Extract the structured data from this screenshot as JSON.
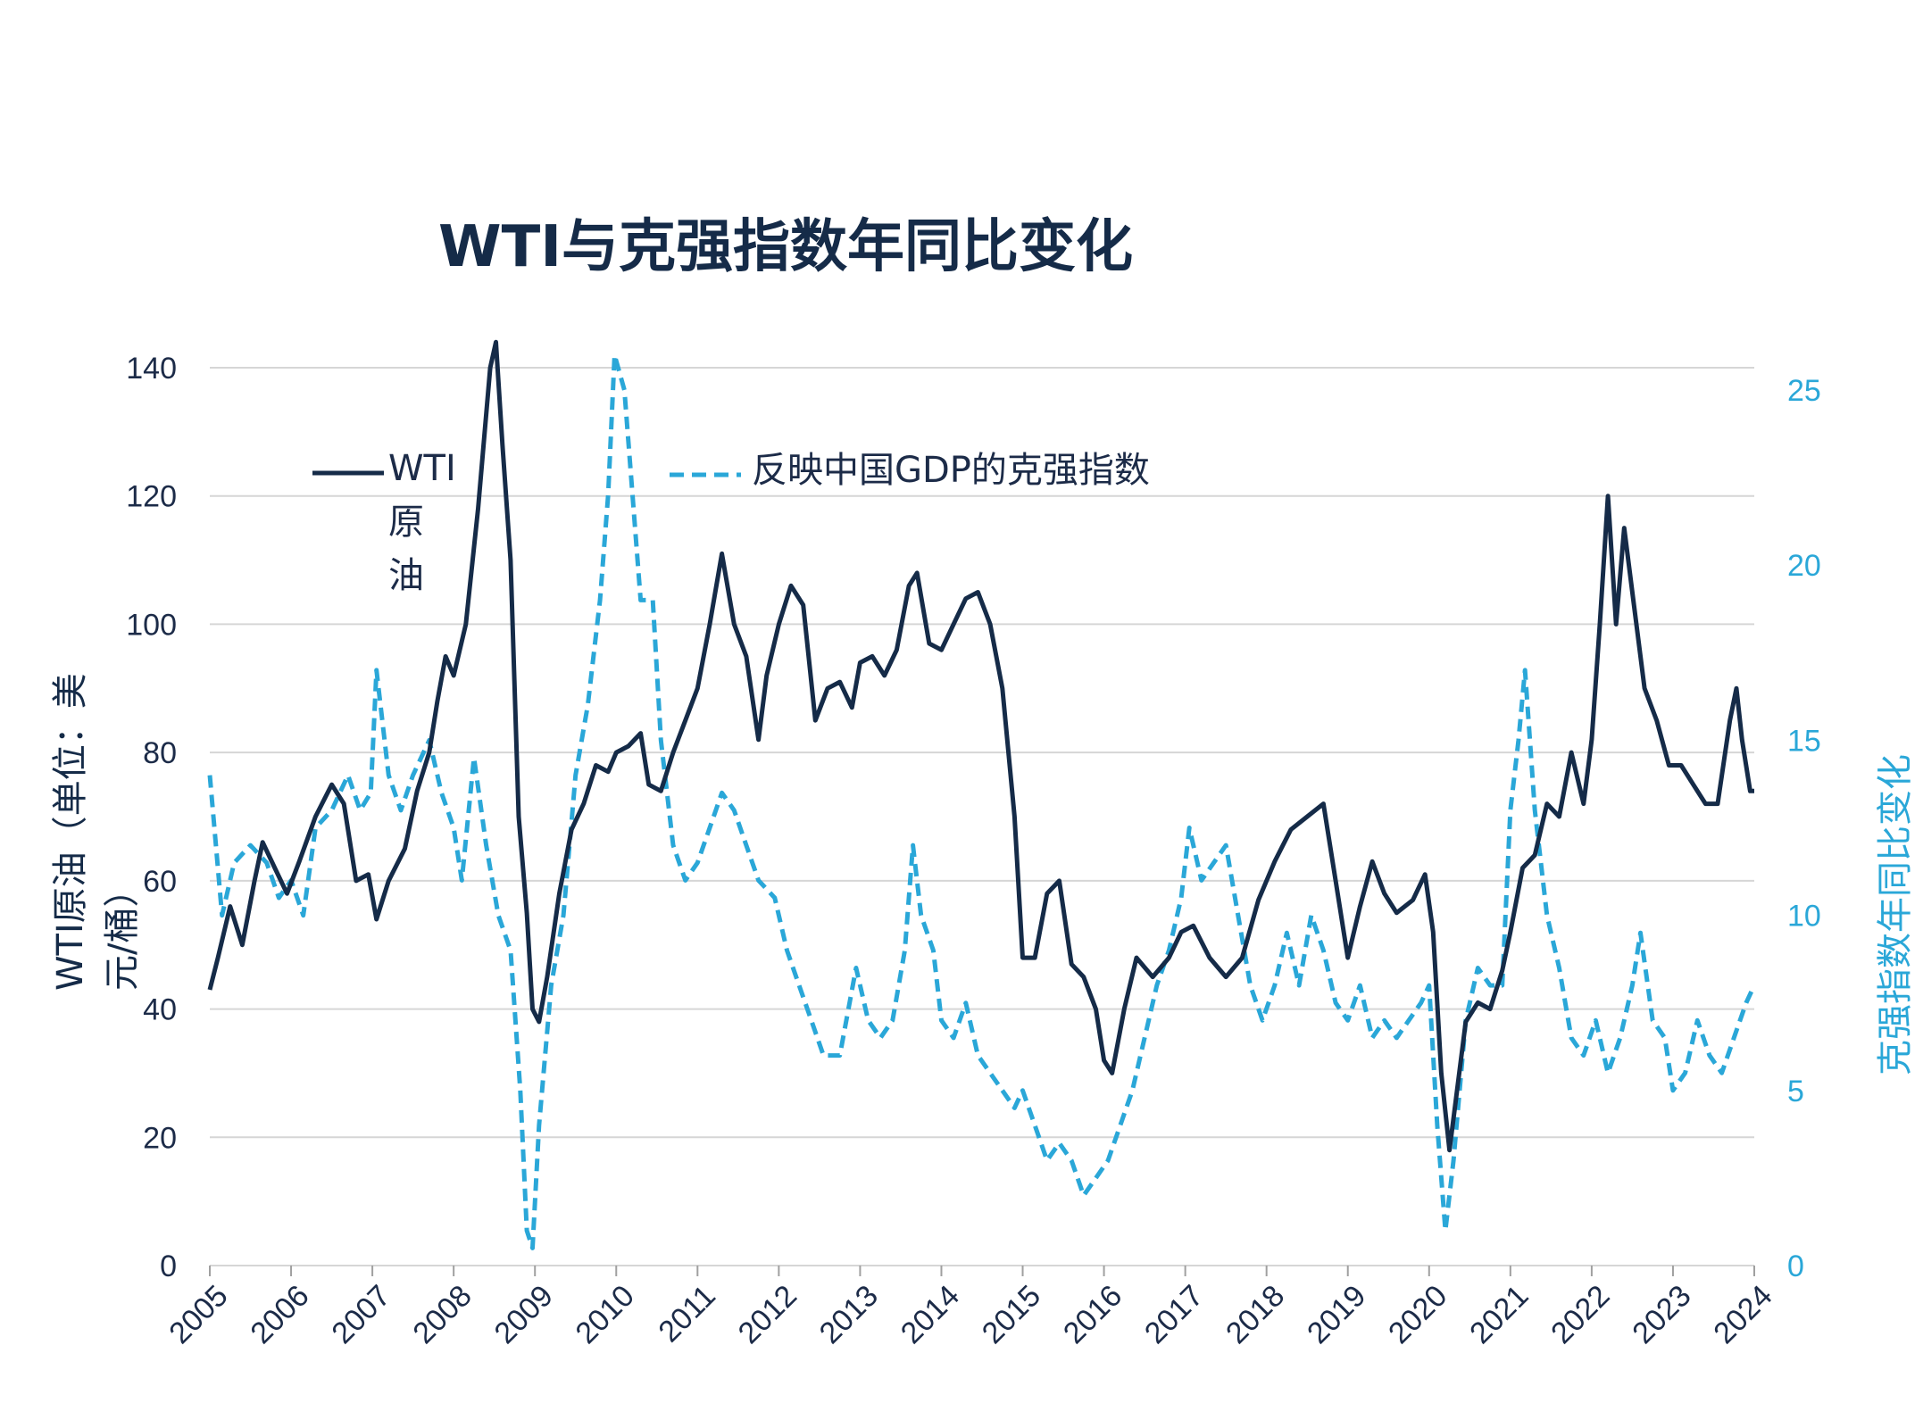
{
  "chart_data": {
    "type": "line",
    "title": "WTI与克强指数年同比变化",
    "ylabel_left_line1": "WTI原油（单位：美",
    "ylabel_left_line2": "元/桶）",
    "ylabel_right": "克强指数年同比变化",
    "xlim": [
      2005,
      2024
    ],
    "ylim_left": [
      0,
      145
    ],
    "ylim_right": [
      0,
      26.5
    ],
    "x_ticks": [
      "2005",
      "2006",
      "2007",
      "2008",
      "2009",
      "2010",
      "2011",
      "2012",
      "2013",
      "2014",
      "2015",
      "2016",
      "2017",
      "2018",
      "2019",
      "2020",
      "2021",
      "2022",
      "2023",
      "2024"
    ],
    "y_ticks_left": [
      "0",
      "20",
      "40",
      "60",
      "80",
      "100",
      "120",
      "140"
    ],
    "y_ticks_right": [
      "0",
      "5",
      "10",
      "15",
      "20",
      "25"
    ],
    "grid": "horizontal",
    "legend": {
      "wti_line1": "WTI",
      "wti_line2": "原",
      "wti_line3": "油",
      "keqiang": "反映中国GDP的克强指数"
    },
    "colors": {
      "wti": "#152b48",
      "keqiang": "#2aa7d8",
      "grid": "#d6d6d6"
    },
    "series": [
      {
        "name": "WTI原油",
        "axis": "left",
        "style": "solid",
        "points": [
          [
            2005.0,
            43
          ],
          [
            2005.1,
            48
          ],
          [
            2005.25,
            56
          ],
          [
            2005.4,
            50
          ],
          [
            2005.55,
            60
          ],
          [
            2005.65,
            66
          ],
          [
            2005.8,
            62
          ],
          [
            2005.95,
            58
          ],
          [
            2006.1,
            63
          ],
          [
            2006.3,
            70
          ],
          [
            2006.5,
            75
          ],
          [
            2006.65,
            72
          ],
          [
            2006.8,
            60
          ],
          [
            2006.95,
            61
          ],
          [
            2007.05,
            54
          ],
          [
            2007.2,
            60
          ],
          [
            2007.4,
            65
          ],
          [
            2007.55,
            74
          ],
          [
            2007.7,
            80
          ],
          [
            2007.8,
            88
          ],
          [
            2007.9,
            95
          ],
          [
            2008.0,
            92
          ],
          [
            2008.15,
            100
          ],
          [
            2008.3,
            118
          ],
          [
            2008.45,
            140
          ],
          [
            2008.52,
            144
          ],
          [
            2008.6,
            128
          ],
          [
            2008.7,
            110
          ],
          [
            2008.8,
            70
          ],
          [
            2008.9,
            55
          ],
          [
            2008.97,
            40
          ],
          [
            2009.05,
            38
          ],
          [
            2009.15,
            45
          ],
          [
            2009.3,
            58
          ],
          [
            2009.45,
            68
          ],
          [
            2009.6,
            72
          ],
          [
            2009.75,
            78
          ],
          [
            2009.9,
            77
          ],
          [
            2010.0,
            80
          ],
          [
            2010.15,
            81
          ],
          [
            2010.3,
            83
          ],
          [
            2010.4,
            75
          ],
          [
            2010.55,
            74
          ],
          [
            2010.7,
            80
          ],
          [
            2010.85,
            85
          ],
          [
            2011.0,
            90
          ],
          [
            2011.15,
            100
          ],
          [
            2011.3,
            111
          ],
          [
            2011.45,
            100
          ],
          [
            2011.6,
            95
          ],
          [
            2011.75,
            82
          ],
          [
            2011.85,
            92
          ],
          [
            2012.0,
            100
          ],
          [
            2012.15,
            106
          ],
          [
            2012.3,
            103
          ],
          [
            2012.45,
            85
          ],
          [
            2012.6,
            90
          ],
          [
            2012.75,
            91
          ],
          [
            2012.9,
            87
          ],
          [
            2013.0,
            94
          ],
          [
            2013.15,
            95
          ],
          [
            2013.3,
            92
          ],
          [
            2013.45,
            96
          ],
          [
            2013.6,
            106
          ],
          [
            2013.7,
            108
          ],
          [
            2013.85,
            97
          ],
          [
            2014.0,
            96
          ],
          [
            2014.15,
            100
          ],
          [
            2014.3,
            104
          ],
          [
            2014.45,
            105
          ],
          [
            2014.6,
            100
          ],
          [
            2014.75,
            90
          ],
          [
            2014.9,
            70
          ],
          [
            2015.0,
            48
          ],
          [
            2015.15,
            48
          ],
          [
            2015.3,
            58
          ],
          [
            2015.45,
            60
          ],
          [
            2015.6,
            47
          ],
          [
            2015.75,
            45
          ],
          [
            2015.9,
            40
          ],
          [
            2016.0,
            32
          ],
          [
            2016.1,
            30
          ],
          [
            2016.25,
            40
          ],
          [
            2016.4,
            48
          ],
          [
            2016.6,
            45
          ],
          [
            2016.8,
            48
          ],
          [
            2016.95,
            52
          ],
          [
            2017.1,
            53
          ],
          [
            2017.3,
            48
          ],
          [
            2017.5,
            45
          ],
          [
            2017.7,
            48
          ],
          [
            2017.9,
            57
          ],
          [
            2018.1,
            63
          ],
          [
            2018.3,
            68
          ],
          [
            2018.5,
            70
          ],
          [
            2018.7,
            72
          ],
          [
            2018.85,
            60
          ],
          [
            2019.0,
            48
          ],
          [
            2019.15,
            56
          ],
          [
            2019.3,
            63
          ],
          [
            2019.45,
            58
          ],
          [
            2019.6,
            55
          ],
          [
            2019.8,
            57
          ],
          [
            2019.95,
            61
          ],
          [
            2020.05,
            52
          ],
          [
            2020.15,
            30
          ],
          [
            2020.25,
            18
          ],
          [
            2020.35,
            28
          ],
          [
            2020.45,
            38
          ],
          [
            2020.6,
            41
          ],
          [
            2020.75,
            40
          ],
          [
            2020.9,
            46
          ],
          [
            2021.0,
            52
          ],
          [
            2021.15,
            62
          ],
          [
            2021.3,
            64
          ],
          [
            2021.45,
            72
          ],
          [
            2021.6,
            70
          ],
          [
            2021.75,
            80
          ],
          [
            2021.9,
            72
          ],
          [
            2022.0,
            82
          ],
          [
            2022.1,
            100
          ],
          [
            2022.2,
            120
          ],
          [
            2022.3,
            100
          ],
          [
            2022.4,
            115
          ],
          [
            2022.5,
            105
          ],
          [
            2022.65,
            90
          ],
          [
            2022.8,
            85
          ],
          [
            2022.95,
            78
          ],
          [
            2023.1,
            78
          ],
          [
            2023.25,
            75
          ],
          [
            2023.4,
            72
          ],
          [
            2023.55,
            72
          ],
          [
            2023.7,
            85
          ],
          [
            2023.78,
            90
          ],
          [
            2023.85,
            82
          ],
          [
            2023.95,
            74
          ],
          [
            2024.0,
            74
          ]
        ]
      },
      {
        "name": "反映中国GDP的克强指数",
        "axis": "right",
        "style": "dashed",
        "points": [
          [
            2005.0,
            14
          ],
          [
            2005.15,
            10
          ],
          [
            2005.3,
            11.5
          ],
          [
            2005.5,
            12
          ],
          [
            2005.7,
            11.5
          ],
          [
            2005.85,
            10.5
          ],
          [
            2006.0,
            11
          ],
          [
            2006.15,
            10
          ],
          [
            2006.3,
            12.5
          ],
          [
            2006.5,
            13
          ],
          [
            2006.7,
            14
          ],
          [
            2006.85,
            13
          ],
          [
            2006.98,
            13.5
          ],
          [
            2007.05,
            17
          ],
          [
            2007.2,
            14
          ],
          [
            2007.35,
            13
          ],
          [
            2007.5,
            14
          ],
          [
            2007.7,
            15
          ],
          [
            2007.85,
            13.5
          ],
          [
            2008.0,
            12.5
          ],
          [
            2008.1,
            11
          ],
          [
            2008.25,
            14.5
          ],
          [
            2008.4,
            12
          ],
          [
            2008.55,
            10
          ],
          [
            2008.7,
            9
          ],
          [
            2008.82,
            5
          ],
          [
            2008.9,
            1
          ],
          [
            2008.97,
            0.5
          ],
          [
            2009.05,
            4
          ],
          [
            2009.2,
            8
          ],
          [
            2009.35,
            10
          ],
          [
            2009.5,
            14
          ],
          [
            2009.65,
            16
          ],
          [
            2009.8,
            19
          ],
          [
            2009.9,
            22
          ],
          [
            2009.98,
            26
          ],
          [
            2010.1,
            25
          ],
          [
            2010.2,
            22
          ],
          [
            2010.3,
            19
          ],
          [
            2010.45,
            19
          ],
          [
            2010.55,
            15
          ],
          [
            2010.7,
            12
          ],
          [
            2010.85,
            11
          ],
          [
            2011.0,
            11.5
          ],
          [
            2011.15,
            12.5
          ],
          [
            2011.3,
            13.5
          ],
          [
            2011.45,
            13
          ],
          [
            2011.6,
            12
          ],
          [
            2011.75,
            11
          ],
          [
            2011.95,
            10.5
          ],
          [
            2012.1,
            9
          ],
          [
            2012.25,
            8
          ],
          [
            2012.4,
            7
          ],
          [
            2012.55,
            6
          ],
          [
            2012.75,
            6
          ],
          [
            2012.95,
            8.5
          ],
          [
            2013.1,
            7
          ],
          [
            2013.25,
            6.5
          ],
          [
            2013.4,
            7
          ],
          [
            2013.55,
            9
          ],
          [
            2013.65,
            12
          ],
          [
            2013.75,
            10
          ],
          [
            2013.9,
            9
          ],
          [
            2014.0,
            7
          ],
          [
            2014.15,
            6.5
          ],
          [
            2014.3,
            7.5
          ],
          [
            2014.45,
            6
          ],
          [
            2014.6,
            5.5
          ],
          [
            2014.75,
            5
          ],
          [
            2014.9,
            4.5
          ],
          [
            2015.0,
            5
          ],
          [
            2015.15,
            4
          ],
          [
            2015.3,
            3
          ],
          [
            2015.45,
            3.5
          ],
          [
            2015.6,
            3
          ],
          [
            2015.75,
            2
          ],
          [
            2015.9,
            2.5
          ],
          [
            2016.05,
            3
          ],
          [
            2016.2,
            4
          ],
          [
            2016.35,
            5
          ],
          [
            2016.5,
            6.5
          ],
          [
            2016.65,
            8
          ],
          [
            2016.8,
            9
          ],
          [
            2016.95,
            10.5
          ],
          [
            2017.05,
            12.5
          ],
          [
            2017.2,
            11
          ],
          [
            2017.35,
            11.5
          ],
          [
            2017.5,
            12
          ],
          [
            2017.65,
            10
          ],
          [
            2017.8,
            8
          ],
          [
            2017.95,
            7
          ],
          [
            2018.1,
            8
          ],
          [
            2018.25,
            9.5
          ],
          [
            2018.4,
            8
          ],
          [
            2018.55,
            10
          ],
          [
            2018.7,
            9
          ],
          [
            2018.85,
            7.5
          ],
          [
            2019.0,
            7
          ],
          [
            2019.15,
            8
          ],
          [
            2019.3,
            6.5
          ],
          [
            2019.45,
            7
          ],
          [
            2019.6,
            6.5
          ],
          [
            2019.75,
            7
          ],
          [
            2019.9,
            7.5
          ],
          [
            2020.0,
            8
          ],
          [
            2020.1,
            4
          ],
          [
            2020.2,
            1
          ],
          [
            2020.3,
            3
          ],
          [
            2020.45,
            7
          ],
          [
            2020.6,
            8.5
          ],
          [
            2020.75,
            8
          ],
          [
            2020.9,
            8
          ],
          [
            2021.0,
            13
          ],
          [
            2021.1,
            15
          ],
          [
            2021.18,
            17
          ],
          [
            2021.3,
            13
          ],
          [
            2021.45,
            10
          ],
          [
            2021.6,
            8.5
          ],
          [
            2021.75,
            6.5
          ],
          [
            2021.9,
            6
          ],
          [
            2022.05,
            7
          ],
          [
            2022.2,
            5.5
          ],
          [
            2022.35,
            6.5
          ],
          [
            2022.5,
            8
          ],
          [
            2022.6,
            9.5
          ],
          [
            2022.75,
            7
          ],
          [
            2022.9,
            6.5
          ],
          [
            2023.0,
            5
          ],
          [
            2023.15,
            5.5
          ],
          [
            2023.3,
            7
          ],
          [
            2023.45,
            6
          ],
          [
            2023.6,
            5.5
          ],
          [
            2023.75,
            6.5
          ],
          [
            2023.9,
            7.5
          ],
          [
            2024.0,
            8
          ]
        ]
      }
    ]
  }
}
